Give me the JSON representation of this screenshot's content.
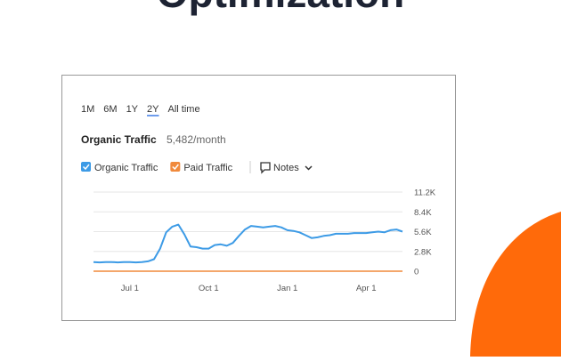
{
  "heading": "Optimization",
  "tabs": [
    "1M",
    "6M",
    "1Y",
    "2Y",
    "All time"
  ],
  "active_tab": 3,
  "summary": {
    "label": "Organic Traffic",
    "value": "5,482/month"
  },
  "notes": "Notes",
  "chart_data": {
    "type": "line",
    "categories": [
      null,
      null,
      null,
      null,
      null,
      null,
      "Jul 1",
      null,
      null,
      null,
      null,
      null,
      null,
      null,
      null,
      null,
      null,
      null,
      null,
      "Oct 1",
      null,
      null,
      null,
      null,
      null,
      null,
      null,
      null,
      null,
      null,
      null,
      null,
      "Jan 1",
      null,
      null,
      null,
      null,
      null,
      null,
      null,
      null,
      null,
      null,
      null,
      null,
      "Apr 1",
      null,
      null,
      null,
      null,
      null,
      null
    ],
    "series": [
      {
        "name": "Organic Traffic",
        "color": "#3d9be6",
        "values": [
          1300,
          1250,
          1300,
          1300,
          1250,
          1300,
          1300,
          1250,
          1300,
          1400,
          1700,
          3200,
          5500,
          6300,
          6600,
          5200,
          3500,
          3400,
          3200,
          3200,
          3700,
          3800,
          3600,
          4000,
          5000,
          5900,
          6400,
          6300,
          6200,
          6300,
          6400,
          6200,
          5800,
          5700,
          5500,
          5100,
          4700,
          4800,
          5000,
          5100,
          5300,
          5300,
          5300,
          5400,
          5400,
          5400,
          5500,
          5600,
          5500,
          5800,
          5900,
          5600
        ]
      },
      {
        "name": "Paid Traffic",
        "color": "#f08a3c",
        "values": [
          0,
          0,
          0,
          0,
          0,
          0,
          0,
          0,
          0,
          0,
          0,
          0,
          0,
          0,
          0,
          0,
          0,
          0,
          0,
          0,
          0,
          0,
          0,
          0,
          0,
          0,
          0,
          0,
          0,
          0,
          0,
          0,
          0,
          0,
          0,
          0,
          0,
          0,
          0,
          0,
          0,
          0,
          0,
          0,
          0,
          0,
          0,
          0,
          0,
          0,
          0,
          0
        ]
      }
    ],
    "ylim": [
      0,
      11200
    ],
    "yticks": [
      0,
      {
        "value": 2800,
        "label": "2.8K"
      },
      {
        "value": 5600,
        "label": "5.6K"
      },
      {
        "value": 8400,
        "label": "8.4K"
      },
      {
        "value": 11200,
        "label": "11.2K"
      }
    ],
    "grid": true
  }
}
